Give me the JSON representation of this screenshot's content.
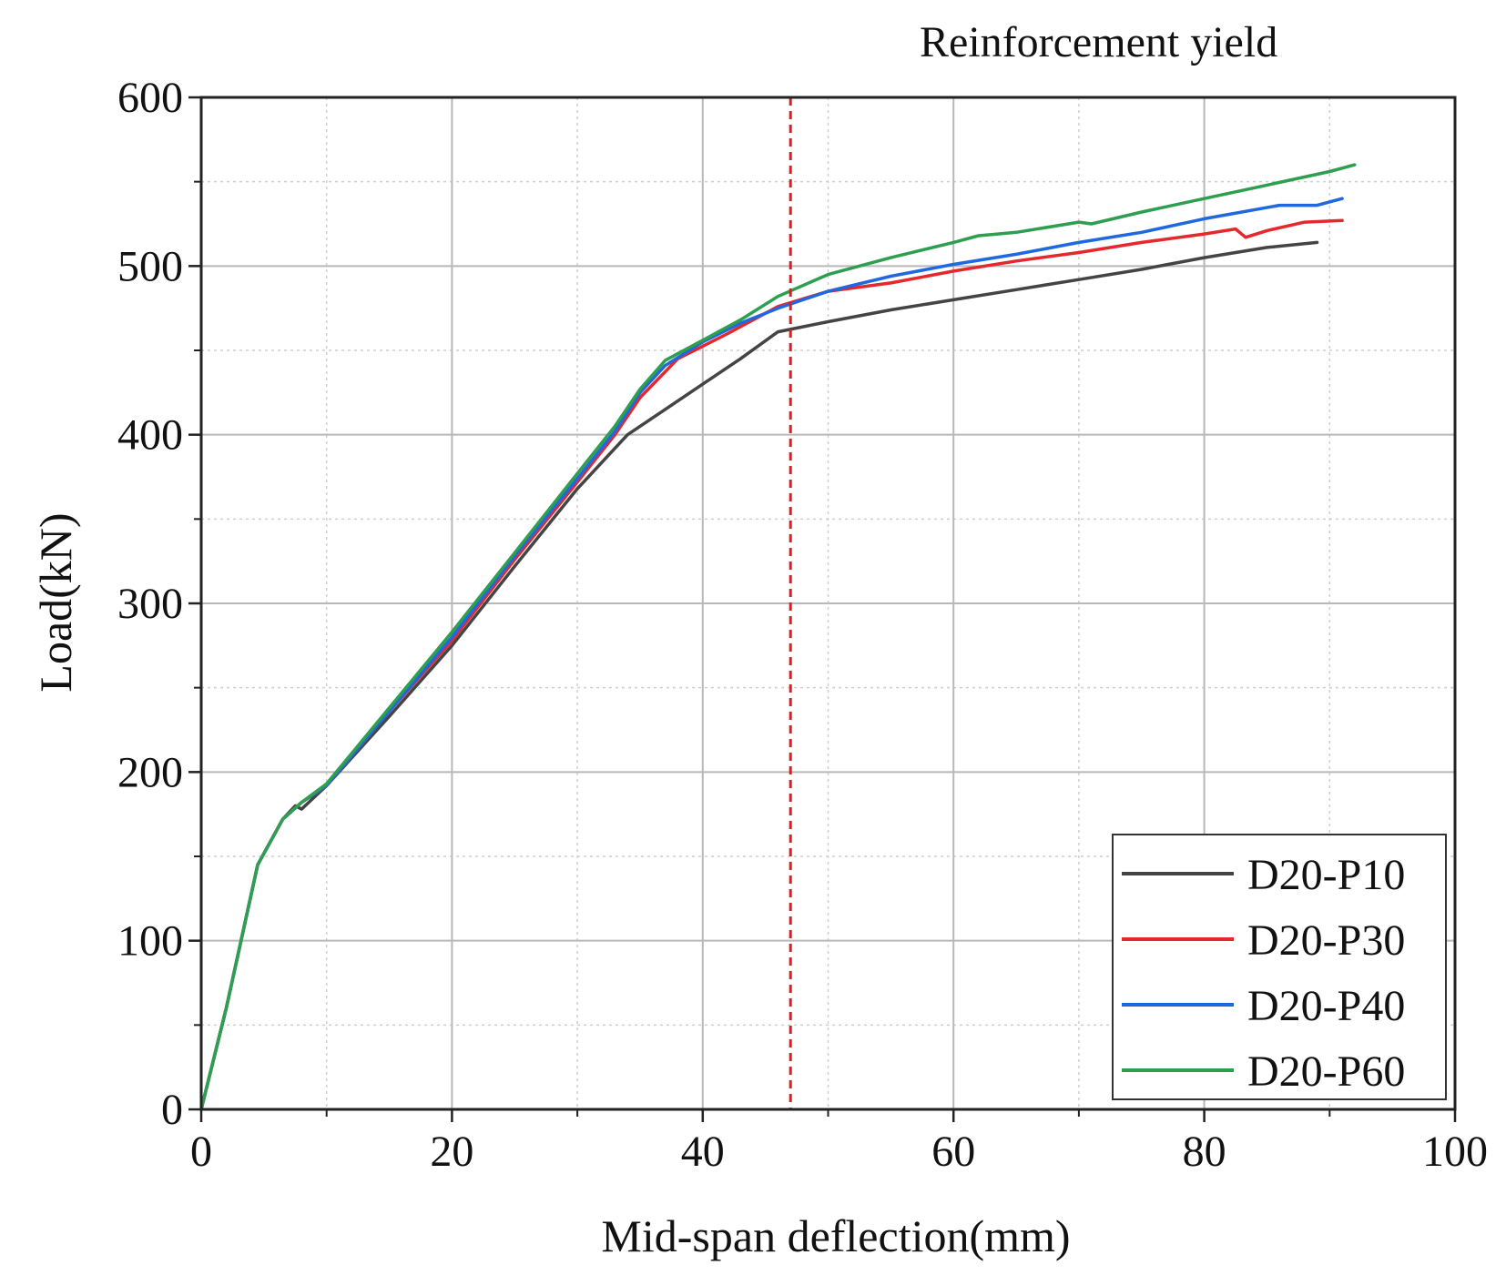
{
  "chart_data": {
    "type": "line",
    "title": "",
    "xlabel": "Mid-span deflection(mm)",
    "ylabel": "Load(kN)",
    "xlim": [
      0,
      100
    ],
    "ylim": [
      0,
      600
    ],
    "xticks": [
      0,
      20,
      40,
      60,
      80,
      100
    ],
    "yticks": [
      0,
      100,
      200,
      300,
      400,
      500,
      600
    ],
    "x_tick_labels": [
      "0",
      "20",
      "40",
      "60",
      "80",
      "100"
    ],
    "y_tick_labels": [
      "0",
      "100",
      "200",
      "300",
      "400",
      "500",
      "600"
    ],
    "grid": true,
    "legend_position": "bottom-right",
    "annotation": {
      "label": "Reinforcement yield",
      "x": 47,
      "color": "#e41a1c",
      "style": "dashed vertical line"
    },
    "series": [
      {
        "name": "D20-P10",
        "color": "#444444",
        "points": [
          [
            0,
            0
          ],
          [
            2,
            60
          ],
          [
            4.5,
            145
          ],
          [
            6.5,
            172
          ],
          [
            7.5,
            180
          ],
          [
            8,
            178
          ],
          [
            10,
            192
          ],
          [
            15,
            233
          ],
          [
            20,
            275
          ],
          [
            25,
            322
          ],
          [
            30,
            368
          ],
          [
            34,
            400
          ],
          [
            37,
            415
          ],
          [
            40,
            430
          ],
          [
            43,
            445
          ],
          [
            46,
            461
          ],
          [
            50,
            467
          ],
          [
            55,
            474
          ],
          [
            60,
            480
          ],
          [
            65,
            486
          ],
          [
            70,
            492
          ],
          [
            75,
            498
          ],
          [
            80,
            505
          ],
          [
            85,
            511
          ],
          [
            89,
            514
          ]
        ]
      },
      {
        "name": "D20-P30",
        "color": "#e6282c",
        "points": [
          [
            0,
            0
          ],
          [
            2,
            60
          ],
          [
            4.5,
            145
          ],
          [
            6.5,
            172
          ],
          [
            8,
            182
          ],
          [
            10,
            192
          ],
          [
            15,
            236
          ],
          [
            20,
            278
          ],
          [
            25,
            326
          ],
          [
            30,
            372
          ],
          [
            33,
            400
          ],
          [
            35,
            422
          ],
          [
            38,
            445
          ],
          [
            42,
            460
          ],
          [
            46,
            476
          ],
          [
            50,
            485
          ],
          [
            55,
            490
          ],
          [
            60,
            497
          ],
          [
            65,
            503
          ],
          [
            70,
            508
          ],
          [
            75,
            514
          ],
          [
            80,
            519
          ],
          [
            82.5,
            522
          ],
          [
            83.3,
            517
          ],
          [
            85,
            521
          ],
          [
            88,
            526
          ],
          [
            91,
            527
          ]
        ]
      },
      {
        "name": "D20-P40",
        "color": "#1f68e0",
        "points": [
          [
            0,
            0
          ],
          [
            2,
            60
          ],
          [
            4.5,
            145
          ],
          [
            6.5,
            172
          ],
          [
            8,
            182
          ],
          [
            10,
            192
          ],
          [
            15,
            236
          ],
          [
            20,
            280
          ],
          [
            25,
            328
          ],
          [
            30,
            374
          ],
          [
            33,
            402
          ],
          [
            35,
            425
          ],
          [
            37,
            441
          ],
          [
            40,
            455
          ],
          [
            43,
            466
          ],
          [
            46,
            475
          ],
          [
            50,
            485
          ],
          [
            55,
            494
          ],
          [
            60,
            501
          ],
          [
            65,
            507
          ],
          [
            70,
            514
          ],
          [
            75,
            520
          ],
          [
            80,
            528
          ],
          [
            86,
            536
          ],
          [
            89,
            536
          ],
          [
            91,
            540
          ]
        ]
      },
      {
        "name": "D20-P60",
        "color": "#2e9e4f",
        "points": [
          [
            0,
            0
          ],
          [
            2,
            60
          ],
          [
            4.5,
            145
          ],
          [
            6.5,
            172
          ],
          [
            8,
            182
          ],
          [
            10,
            193
          ],
          [
            15,
            238
          ],
          [
            20,
            283
          ],
          [
            25,
            330
          ],
          [
            30,
            377
          ],
          [
            33,
            405
          ],
          [
            35,
            427
          ],
          [
            37,
            444
          ],
          [
            40,
            456
          ],
          [
            43,
            468
          ],
          [
            46,
            482
          ],
          [
            50,
            495
          ],
          [
            55,
            505
          ],
          [
            60,
            514
          ],
          [
            62,
            518
          ],
          [
            65,
            520
          ],
          [
            70,
            526
          ],
          [
            71,
            525
          ],
          [
            75,
            532
          ],
          [
            80,
            540
          ],
          [
            85,
            548
          ],
          [
            90,
            556
          ],
          [
            92,
            560
          ]
        ]
      }
    ]
  }
}
